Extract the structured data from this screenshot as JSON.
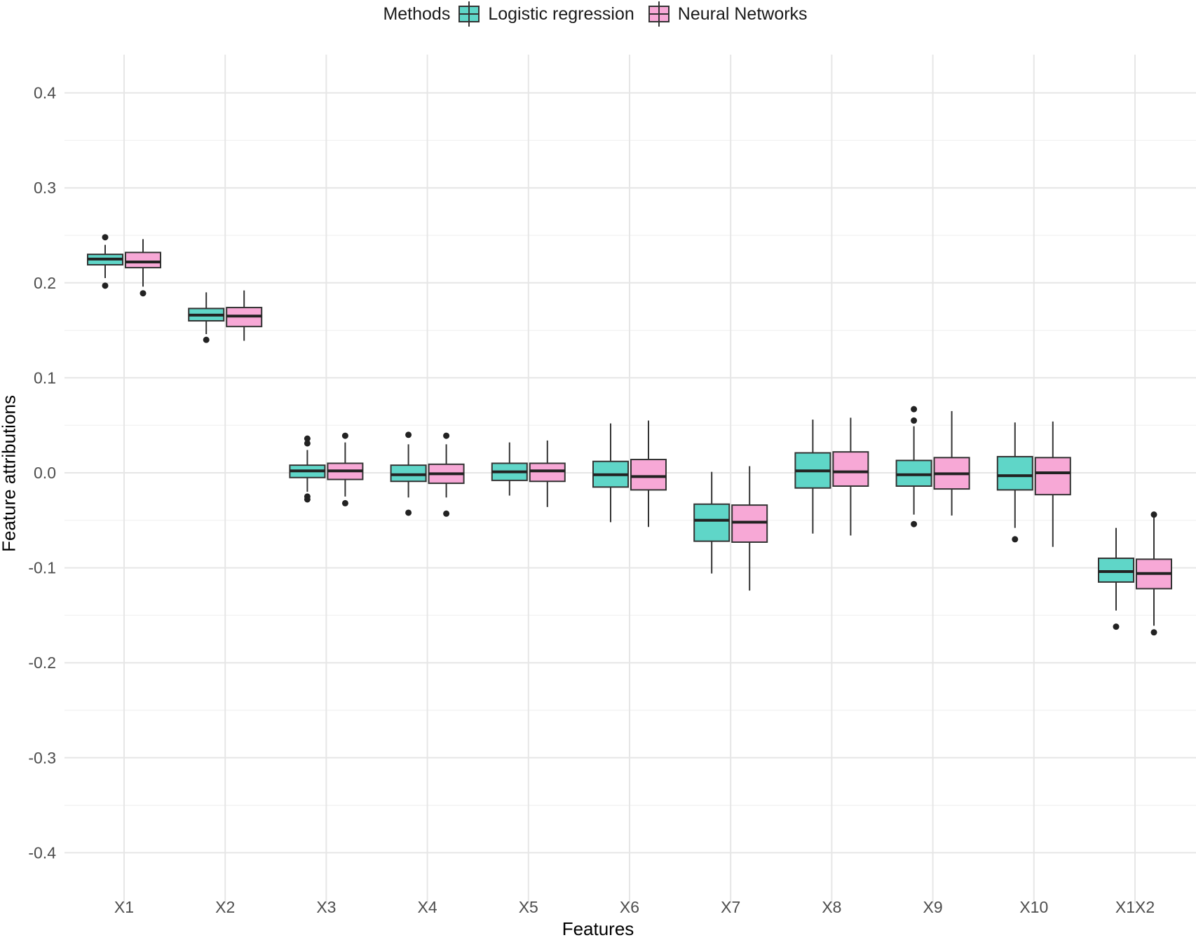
{
  "chart_data": {
    "type": "boxplot",
    "title": "",
    "xlabel": "Features",
    "ylabel": "Feature attributions",
    "ylim": [
      -0.42,
      0.44
    ],
    "yticks": [
      0.4,
      0.3,
      0.2,
      0.1,
      0.0,
      -0.1,
      -0.2,
      -0.3,
      -0.4
    ],
    "ytick_labels": [
      "0.4",
      "0.3",
      "0.2",
      "0.1",
      "0.0",
      "-0.1",
      "-0.2",
      "-0.3",
      "-0.4"
    ],
    "categories": [
      "X1",
      "X2",
      "X3",
      "X4",
      "X5",
      "X6",
      "X7",
      "X8",
      "X9",
      "X10",
      "X1X2"
    ],
    "legend": {
      "title": "Methods",
      "position": "top",
      "items": [
        {
          "name": "Logistic regression",
          "color": "#5fd6c8"
        },
        {
          "name": "Neural Networks",
          "color": "#f7a8d6"
        }
      ]
    },
    "series": [
      {
        "name": "Logistic regression",
        "color": "#5fd6c8",
        "boxes": [
          {
            "q1": 0.219,
            "median": 0.225,
            "q3": 0.23,
            "whisker_low": 0.205,
            "whisker_high": 0.24,
            "outliers": [
              0.248,
              0.197
            ]
          },
          {
            "q1": 0.16,
            "median": 0.166,
            "q3": 0.173,
            "whisker_low": 0.146,
            "whisker_high": 0.19,
            "outliers": [
              0.14
            ]
          },
          {
            "q1": -0.005,
            "median": 0.002,
            "q3": 0.008,
            "whisker_low": -0.02,
            "whisker_high": 0.024,
            "outliers": [
              0.036,
              0.031,
              -0.025,
              -0.028
            ]
          },
          {
            "q1": -0.009,
            "median": -0.002,
            "q3": 0.008,
            "whisker_low": -0.026,
            "whisker_high": 0.03,
            "outliers": [
              0.04,
              -0.042
            ]
          },
          {
            "q1": -0.008,
            "median": 0.001,
            "q3": 0.01,
            "whisker_low": -0.024,
            "whisker_high": 0.032,
            "outliers": []
          },
          {
            "q1": -0.015,
            "median": -0.002,
            "q3": 0.012,
            "whisker_low": -0.052,
            "whisker_high": 0.052,
            "outliers": []
          },
          {
            "q1": -0.072,
            "median": -0.05,
            "q3": -0.033,
            "whisker_low": -0.106,
            "whisker_high": 0.001,
            "outliers": []
          },
          {
            "q1": -0.016,
            "median": 0.002,
            "q3": 0.021,
            "whisker_low": -0.064,
            "whisker_high": 0.056,
            "outliers": []
          },
          {
            "q1": -0.014,
            "median": -0.002,
            "q3": 0.013,
            "whisker_low": -0.044,
            "whisker_high": 0.049,
            "outliers": [
              0.067,
              0.055,
              -0.054
            ]
          },
          {
            "q1": -0.018,
            "median": -0.003,
            "q3": 0.017,
            "whisker_low": -0.058,
            "whisker_high": 0.053,
            "outliers": [
              -0.07
            ]
          },
          {
            "q1": -0.115,
            "median": -0.104,
            "q3": -0.09,
            "whisker_low": -0.145,
            "whisker_high": -0.058,
            "outliers": [
              -0.162
            ]
          }
        ]
      },
      {
        "name": "Neural Networks",
        "color": "#f7a8d6",
        "boxes": [
          {
            "q1": 0.216,
            "median": 0.222,
            "q3": 0.232,
            "whisker_low": 0.196,
            "whisker_high": 0.246,
            "outliers": [
              0.189
            ]
          },
          {
            "q1": 0.154,
            "median": 0.165,
            "q3": 0.174,
            "whisker_low": 0.139,
            "whisker_high": 0.192,
            "outliers": []
          },
          {
            "q1": -0.007,
            "median": 0.002,
            "q3": 0.01,
            "whisker_low": -0.025,
            "whisker_high": 0.032,
            "outliers": [
              0.039,
              -0.032
            ]
          },
          {
            "q1": -0.011,
            "median": -0.001,
            "q3": 0.009,
            "whisker_low": -0.026,
            "whisker_high": 0.03,
            "outliers": [
              0.039,
              -0.043
            ]
          },
          {
            "q1": -0.009,
            "median": 0.002,
            "q3": 0.01,
            "whisker_low": -0.036,
            "whisker_high": 0.034,
            "outliers": []
          },
          {
            "q1": -0.018,
            "median": -0.004,
            "q3": 0.014,
            "whisker_low": -0.057,
            "whisker_high": 0.055,
            "outliers": []
          },
          {
            "q1": -0.073,
            "median": -0.052,
            "q3": -0.034,
            "whisker_low": -0.124,
            "whisker_high": 0.007,
            "outliers": []
          },
          {
            "q1": -0.014,
            "median": 0.001,
            "q3": 0.022,
            "whisker_low": -0.066,
            "whisker_high": 0.058,
            "outliers": []
          },
          {
            "q1": -0.017,
            "median": -0.001,
            "q3": 0.016,
            "whisker_low": -0.045,
            "whisker_high": 0.065,
            "outliers": []
          },
          {
            "q1": -0.023,
            "median": 0.0,
            "q3": 0.016,
            "whisker_low": -0.078,
            "whisker_high": 0.054,
            "outliers": []
          },
          {
            "q1": -0.122,
            "median": -0.106,
            "q3": -0.091,
            "whisker_low": -0.161,
            "whisker_high": -0.046,
            "outliers": [
              -0.044,
              -0.168
            ]
          }
        ]
      }
    ]
  }
}
